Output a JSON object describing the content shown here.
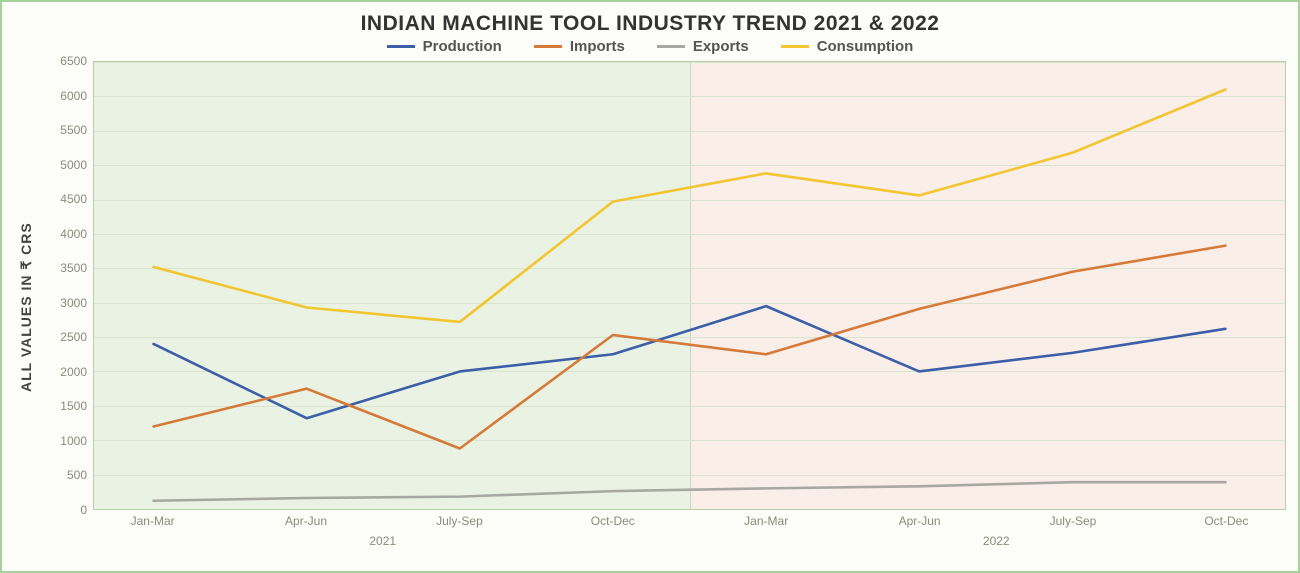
{
  "chart": {
    "type": "line",
    "title": "INDIAN MACHINE TOOL INDUSTRY TREND 2021 & 2022",
    "title_fontsize": 21,
    "title_color": "#333333",
    "ylabel": "ALL VALUES IN ₹ CRS",
    "ylabel_fontsize": 14,
    "ylabel_color": "#444444",
    "background_color": "#fcfdf8",
    "frame_border_color": "#a7d19a",
    "plot_border_color": "#b7cfa9",
    "grid_color": "#d8e6cf",
    "tick_label_color": "#8a8a7e",
    "tick_label_fontsize": 12,
    "line_width": 2.6,
    "ylim": [
      0,
      6500
    ],
    "ytick_step": 500,
    "x_categories": [
      "Jan-Mar",
      "Apr-Jun",
      "July-Sep",
      "Oct-Dec",
      "Jan-Mar",
      "Apr-Jun",
      "July-Sep",
      "Oct-Dec"
    ],
    "x_years": [
      {
        "label": "2021",
        "span": [
          0,
          3
        ]
      },
      {
        "label": "2022",
        "span": [
          4,
          7
        ]
      }
    ],
    "year_backgrounds": [
      {
        "span": [
          0,
          3
        ],
        "color": "#eaf3e3"
      },
      {
        "span": [
          4,
          7
        ],
        "color": "#faeee8"
      }
    ],
    "year_separator_color": "#c6d9bb",
    "legend": {
      "fontsize": 15,
      "color": "#555555",
      "items": [
        {
          "key": "production",
          "label": "Production",
          "color": "#3b5fa8"
        },
        {
          "key": "imports",
          "label": "Imports",
          "color": "#d67a3a"
        },
        {
          "key": "exports",
          "label": "Exports",
          "color": "#a8a8a2"
        },
        {
          "key": "consumption",
          "label": "Consumption",
          "color": "#f2c531"
        }
      ]
    },
    "series": {
      "production": [
        2400,
        1320,
        2000,
        2250,
        2950,
        2000,
        2270,
        2620
      ],
      "imports": [
        1200,
        1750,
        880,
        2530,
        2250,
        2910,
        3450,
        3830
      ],
      "exports": [
        120,
        160,
        180,
        260,
        300,
        330,
        390,
        390
      ],
      "consumption": [
        3520,
        2930,
        2720,
        4470,
        4880,
        4560,
        5180,
        6100
      ]
    }
  }
}
